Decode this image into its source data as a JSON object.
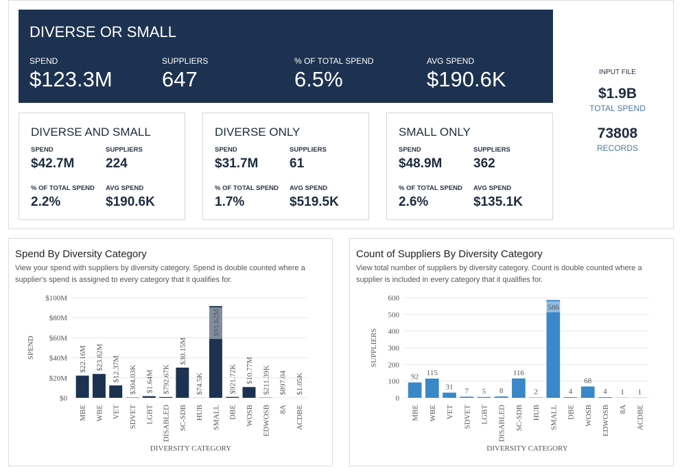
{
  "summary": {
    "title": "DIVERSE OR SMALL",
    "metrics": [
      {
        "label": "SPEND",
        "value": "$123.3M"
      },
      {
        "label": "SUPPLIERS",
        "value": "647"
      },
      {
        "label": "% OF TOTAL SPEND",
        "value": "6.5%"
      },
      {
        "label": "AVG SPEND",
        "value": "$190.6K"
      }
    ]
  },
  "cards": [
    {
      "title": "DIVERSE AND SMALL",
      "metrics": [
        {
          "label": "SPEND",
          "value": "$42.7M"
        },
        {
          "label": "SUPPLIERS",
          "value": "224"
        },
        {
          "label": "% OF TOTAL SPEND",
          "value": "2.2%"
        },
        {
          "label": "AVG SPEND",
          "value": "$190.6K"
        }
      ]
    },
    {
      "title": "DIVERSE ONLY",
      "metrics": [
        {
          "label": "SPEND",
          "value": "$31.7M"
        },
        {
          "label": "SUPPLIERS",
          "value": "61"
        },
        {
          "label": "% OF TOTAL SPEND",
          "value": "1.7%"
        },
        {
          "label": "AVG SPEND",
          "value": "$519.5K"
        }
      ]
    },
    {
      "title": "SMALL ONLY",
      "metrics": [
        {
          "label": "SPEND",
          "value": "$48.9M"
        },
        {
          "label": "SUPPLIERS",
          "value": "362"
        },
        {
          "label": "% OF TOTAL SPEND",
          "value": "2.6%"
        },
        {
          "label": "AVG SPEND",
          "value": "$135.1K"
        }
      ]
    }
  ],
  "input_file": {
    "title": "INPUT FILE",
    "total": "$1.9B",
    "total_label": "TOTAL SPEND",
    "records": "73808",
    "records_label": "RECORDS"
  },
  "chart_data": [
    {
      "type": "bar",
      "title": "Spend By Diversity Category",
      "subtitle": "View your spend with suppliers by diversity category. Spend is double counted where a supplier's spend is assigned to every category that it qualifies for.",
      "x_label": "DIVERSITY CATEGORY",
      "y_label": "SPEND",
      "categories": [
        "MBE",
        "WBE",
        "VET",
        "SDVET",
        "LGBT",
        "DISABLED",
        "SC-SDB",
        "HUB",
        "SMALL",
        "DBE",
        "WOSB",
        "EDWOSB",
        "8A",
        "ACDBE"
      ],
      "values": [
        22160000,
        23820000,
        12370000,
        304030,
        1640000,
        792670,
        30150000,
        74500,
        91620000,
        921720,
        10770000,
        211390,
        897.04,
        1050
      ],
      "value_labels": [
        "$22.16M",
        "$23.82M",
        "$12.37M",
        "$304.03K",
        "$1.64M",
        "$792.67K",
        "$30.15M",
        "$74.5K",
        "$91.62M",
        "$921.72K",
        "$10.77M",
        "$211.39K",
        "$897.04",
        "$1.05K"
      ],
      "color": "#1d3250",
      "ylim": [
        0,
        100000000
      ],
      "yticks": [
        {
          "value": 0,
          "label": "$0"
        },
        {
          "value": 20000000,
          "label": "$20M"
        },
        {
          "value": 40000000,
          "label": "$40M"
        },
        {
          "value": 60000000,
          "label": "$60M"
        },
        {
          "value": 80000000,
          "label": "$80M"
        },
        {
          "value": 100000000,
          "label": "$100M"
        }
      ],
      "grid": true
    },
    {
      "type": "bar",
      "title": "Count of Suppliers By Diversity Category",
      "subtitle": "View total number of suppliers by diversity category. Count is double counted where a supplier is included in every category that it qualifies for.",
      "x_label": "DIVERSITY CATEGORY",
      "y_label": "SUPPLIERS",
      "categories": [
        "MBE",
        "WBE",
        "VET",
        "SDVET",
        "LGBT",
        "DISABLED",
        "SC-SDB",
        "HUB",
        "SMALL",
        "DBE",
        "WOSB",
        "EDWOSB",
        "8A",
        "ACDBE"
      ],
      "values": [
        92,
        115,
        31,
        7,
        5,
        8,
        116,
        2,
        586,
        4,
        68,
        4,
        1,
        1
      ],
      "color": "#3a87c9",
      "ylim": [
        0,
        600
      ],
      "yticks": [
        0,
        100,
        200,
        300,
        400,
        500,
        600
      ],
      "grid": true
    }
  ]
}
